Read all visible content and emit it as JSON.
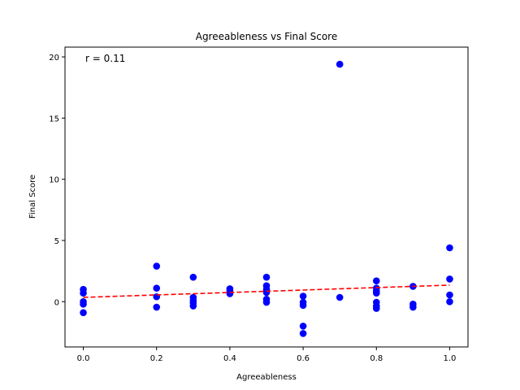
{
  "chart_data": {
    "type": "scatter",
    "title": "Agreeableness vs Final Score",
    "xlabel": "Agreeableness",
    "ylabel": "Final Score",
    "xlim": [
      -0.05,
      1.05
    ],
    "ylim": [
      -3.7,
      20.8
    ],
    "xticks": [
      0.0,
      0.2,
      0.4,
      0.6,
      0.8,
      1.0
    ],
    "xtick_labels": [
      "0.0",
      "0.2",
      "0.4",
      "0.6",
      "0.8",
      "1.0"
    ],
    "yticks": [
      0,
      5,
      10,
      15,
      20
    ],
    "ytick_labels": [
      "0",
      "5",
      "10",
      "15",
      "20"
    ],
    "grid": false,
    "annotation": "r = 0.11",
    "point_color": "#0000ff",
    "trend_color": "#ff0000",
    "points": [
      {
        "x": 0.0,
        "y": 1.0
      },
      {
        "x": 0.0,
        "y": 0.7
      },
      {
        "x": 0.0,
        "y": 0.0
      },
      {
        "x": 0.0,
        "y": -0.2
      },
      {
        "x": 0.0,
        "y": -0.9
      },
      {
        "x": 0.2,
        "y": 2.9
      },
      {
        "x": 0.2,
        "y": 1.1
      },
      {
        "x": 0.2,
        "y": 0.4
      },
      {
        "x": 0.2,
        "y": -0.45
      },
      {
        "x": 0.3,
        "y": 2.0
      },
      {
        "x": 0.3,
        "y": 0.35
      },
      {
        "x": 0.3,
        "y": 0.1
      },
      {
        "x": 0.3,
        "y": -0.1
      },
      {
        "x": 0.3,
        "y": -0.35
      },
      {
        "x": 0.4,
        "y": 1.05
      },
      {
        "x": 0.4,
        "y": 0.9
      },
      {
        "x": 0.4,
        "y": 0.65
      },
      {
        "x": 0.5,
        "y": 2.0
      },
      {
        "x": 0.5,
        "y": 1.3
      },
      {
        "x": 0.5,
        "y": 1.0
      },
      {
        "x": 0.5,
        "y": 0.75
      },
      {
        "x": 0.5,
        "y": 0.2
      },
      {
        "x": 0.5,
        "y": -0.05
      },
      {
        "x": 0.6,
        "y": 0.45
      },
      {
        "x": 0.6,
        "y": -0.05
      },
      {
        "x": 0.6,
        "y": -0.3
      },
      {
        "x": 0.6,
        "y": -2.0
      },
      {
        "x": 0.6,
        "y": -2.6
      },
      {
        "x": 0.7,
        "y": 19.4
      },
      {
        "x": 0.7,
        "y": 0.35
      },
      {
        "x": 0.8,
        "y": 1.7
      },
      {
        "x": 0.8,
        "y": 1.1
      },
      {
        "x": 0.8,
        "y": 0.85
      },
      {
        "x": 0.8,
        "y": 0.7
      },
      {
        "x": 0.8,
        "y": -0.05
      },
      {
        "x": 0.8,
        "y": -0.35
      },
      {
        "x": 0.8,
        "y": -0.55
      },
      {
        "x": 0.9,
        "y": 1.25
      },
      {
        "x": 0.9,
        "y": -0.2
      },
      {
        "x": 0.9,
        "y": -0.45
      },
      {
        "x": 1.0,
        "y": 4.4
      },
      {
        "x": 1.0,
        "y": 1.85
      },
      {
        "x": 1.0,
        "y": 0.55
      },
      {
        "x": 1.0,
        "y": 0.0
      }
    ],
    "trend_line": {
      "x": [
        0.0,
        1.0
      ],
      "y": [
        0.35,
        1.35
      ]
    }
  }
}
